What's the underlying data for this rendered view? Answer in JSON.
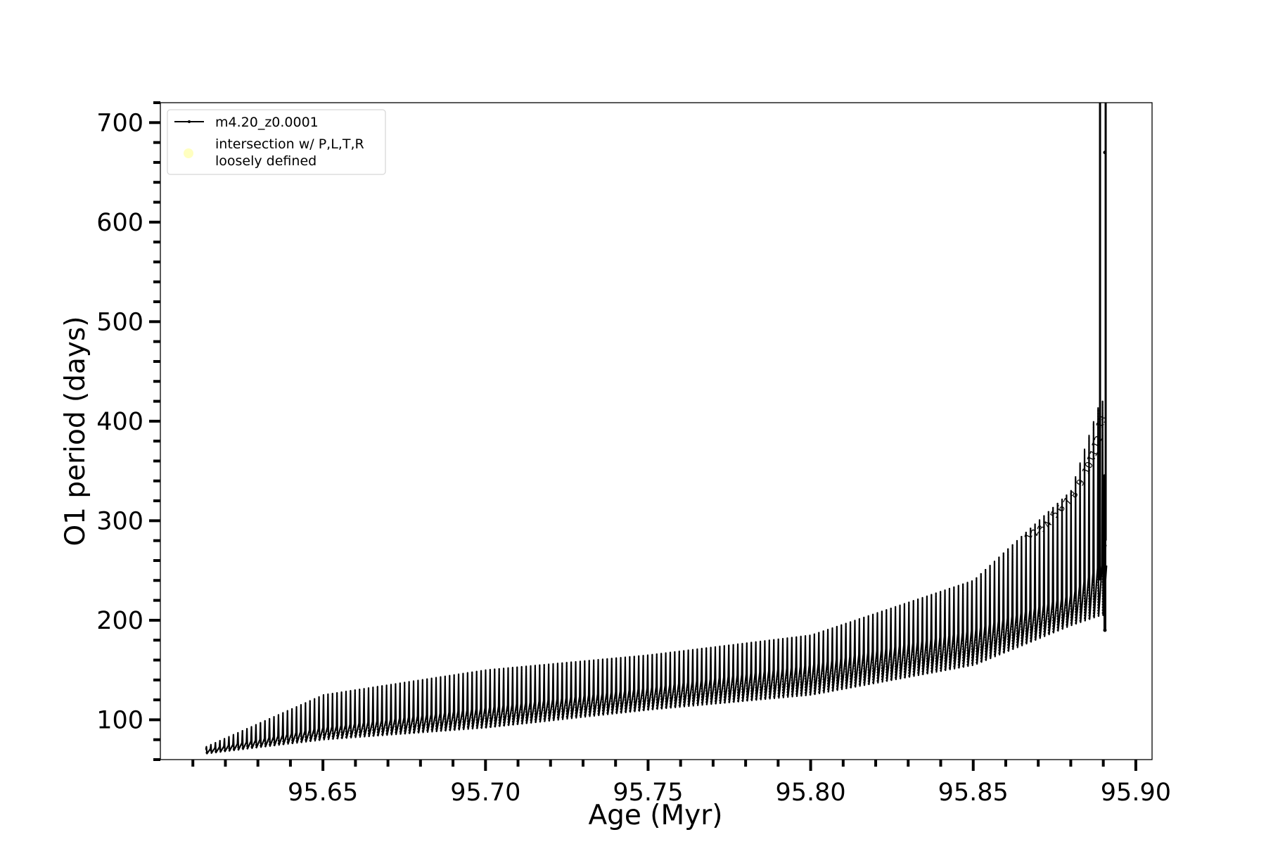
{
  "chart_data": {
    "type": "line",
    "title": "",
    "xlabel": "Age (Myr)",
    "ylabel": "O1 period (days)",
    "xlim": [
      95.6,
      95.905
    ],
    "ylim": [
      60,
      720
    ],
    "grid": false,
    "legend_position": "top-left",
    "x_ticks": [
      95.65,
      95.7,
      95.75,
      95.8,
      95.85,
      95.9
    ],
    "x_tick_labels": [
      "95.65",
      "95.70",
      "95.75",
      "95.80",
      "95.85",
      "95.90"
    ],
    "y_ticks": [
      100,
      200,
      300,
      400,
      500,
      600,
      700
    ],
    "y_tick_labels": [
      "100",
      "200",
      "300",
      "400",
      "500",
      "600",
      "700"
    ],
    "series": [
      {
        "name": "m4.20_z0.0001",
        "color": "#000000",
        "marker": "dot",
        "pulse_count": 200,
        "x_range": [
          95.614,
          95.891
        ],
        "envelope_x": [
          95.614,
          95.65,
          95.7,
          95.75,
          95.8,
          95.85,
          95.88,
          95.889
        ],
        "envelope_upper": [
          73,
          125,
          150,
          165,
          185,
          240,
          330,
          420
        ],
        "envelope_mid": [
          70,
          92,
          112,
          132,
          155,
          190,
          225,
          255
        ],
        "envelope_lower": [
          66,
          80,
          92,
          110,
          125,
          155,
          195,
          205
        ],
        "final_spike": {
          "x": 95.889,
          "y_max": 720,
          "end_points_y": [
            670,
            345,
            275,
            190
          ]
        }
      }
    ],
    "overlay_legend_entry": {
      "label_line1": "intersection w/ P,L,T,R",
      "label_line2": "loosely defined",
      "color": "#ffffc0"
    },
    "annotations": [
      {
        "text": "1",
        "x": 95.8675,
        "y": 280
      },
      {
        "text": "2",
        "x": 95.8695,
        "y": 284
      },
      {
        "text": "3",
        "x": 95.8715,
        "y": 288
      },
      {
        "text": "4",
        "x": 95.8735,
        "y": 292
      },
      {
        "text": "5",
        "x": 95.8755,
        "y": 302
      },
      {
        "text": "6",
        "x": 95.8775,
        "y": 308
      },
      {
        "text": "7",
        "x": 95.8795,
        "y": 315
      },
      {
        "text": "8",
        "x": 95.8815,
        "y": 322
      },
      {
        "text": "9",
        "x": 95.8835,
        "y": 334
      },
      {
        "text": "10",
        "x": 95.8853,
        "y": 346
      },
      {
        "text": "11",
        "x": 95.8868,
        "y": 358
      },
      {
        "text": "12",
        "x": 95.8882,
        "y": 372
      },
      {
        "text": "13",
        "x": 95.8895,
        "y": 392
      }
    ]
  }
}
